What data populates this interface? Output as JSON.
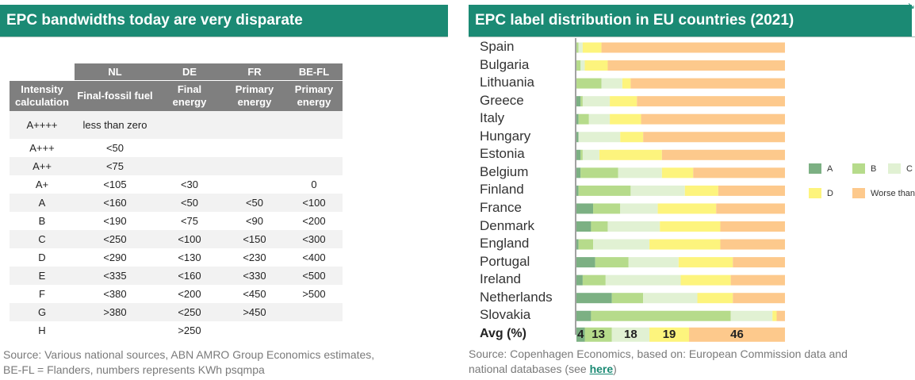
{
  "left_panel": {
    "title": "EPC bandwidths today are very disparate",
    "table": {
      "country_headers": [
        "NL",
        "DE",
        "FR",
        "BE-FL"
      ],
      "sub_headers": [
        [
          "Intensity",
          "calculation"
        ],
        [
          "Final-fossil fuel"
        ],
        [
          "Final",
          "energy"
        ],
        [
          "Primary",
          "energy"
        ],
        [
          "Primary",
          "energy"
        ]
      ],
      "rows": [
        [
          "A++++",
          "less than zero",
          "",
          "",
          ""
        ],
        [
          "A+++",
          "<50",
          "",
          "",
          ""
        ],
        [
          "A++",
          "<75",
          "",
          "",
          ""
        ],
        [
          "A+",
          "<105",
          "<30",
          "",
          "0"
        ],
        [
          "A",
          "<160",
          "<50",
          "<50",
          "<100"
        ],
        [
          "B",
          "<190",
          "<75",
          "<90",
          "<200"
        ],
        [
          "C",
          "<250",
          "<100",
          "<150",
          "<300"
        ],
        [
          "D",
          "<290",
          "<130",
          "<230",
          "<400"
        ],
        [
          "E",
          "<335",
          "<160",
          "<330",
          "<500"
        ],
        [
          "F",
          "<380",
          "<200",
          "<450",
          ">500"
        ],
        [
          "G",
          ">380",
          "<250",
          ">450",
          ""
        ],
        [
          "H",
          "",
          ">250",
          "",
          ""
        ]
      ]
    },
    "source_line1": "Source: Various national sources, ABN AMRO Group Economics estimates,",
    "source_line2": "BE-FL = Flanders, numbers represents KWh psqmpa"
  },
  "right_panel": {
    "title": "EPC label distribution in EU countries (2021)",
    "source_line1": "Source: Copenhagen Economics, based on: European Commission data and",
    "source_line2_prefix": "national databases (see ",
    "source_link": "here",
    "source_line2_suffix": ")"
  },
  "chart_data": {
    "type": "bar",
    "stacked": true,
    "orientation": "horizontal",
    "unit": "%",
    "categories": [
      "Spain",
      "Bulgaria",
      "Lithuania",
      "Greece",
      "Italy",
      "Hungary",
      "Estonia",
      "Belgium",
      "Finland",
      "France",
      "Denmark",
      "England",
      "Portugal",
      "Ireland",
      "Netherlands",
      "Slovakia"
    ],
    "series": [
      {
        "name": "A",
        "color": "#7cb083",
        "values": [
          0,
          0,
          0,
          2,
          1,
          1,
          2,
          2,
          1,
          8,
          7,
          1,
          9,
          3,
          17,
          7
        ]
      },
      {
        "name": "B",
        "color": "#b6db8b",
        "values": [
          1,
          2,
          12,
          1,
          5,
          0,
          1,
          18,
          25,
          13,
          8,
          7,
          16,
          11,
          15,
          67
        ]
      },
      {
        "name": "C",
        "color": "#e1f1d3",
        "values": [
          2,
          2,
          10,
          13,
          10,
          20,
          8,
          21,
          26,
          18,
          25,
          27,
          24,
          36,
          26,
          20
        ]
      },
      {
        "name": "D",
        "color": "#fdf47d",
        "values": [
          9,
          11,
          4,
          13,
          15,
          11,
          30,
          15,
          16,
          28,
          29,
          34,
          26,
          24,
          17,
          2
        ]
      },
      {
        "name": "Worse than D",
        "color": "#fdc98c",
        "values": [
          88,
          85,
          74,
          71,
          69,
          68,
          59,
          44,
          32,
          33,
          31,
          31,
          25,
          26,
          25,
          4
        ]
      }
    ],
    "average": {
      "label": "Avg (%)",
      "values": [
        4,
        13,
        18,
        19,
        46
      ]
    },
    "legend_position": "right"
  }
}
